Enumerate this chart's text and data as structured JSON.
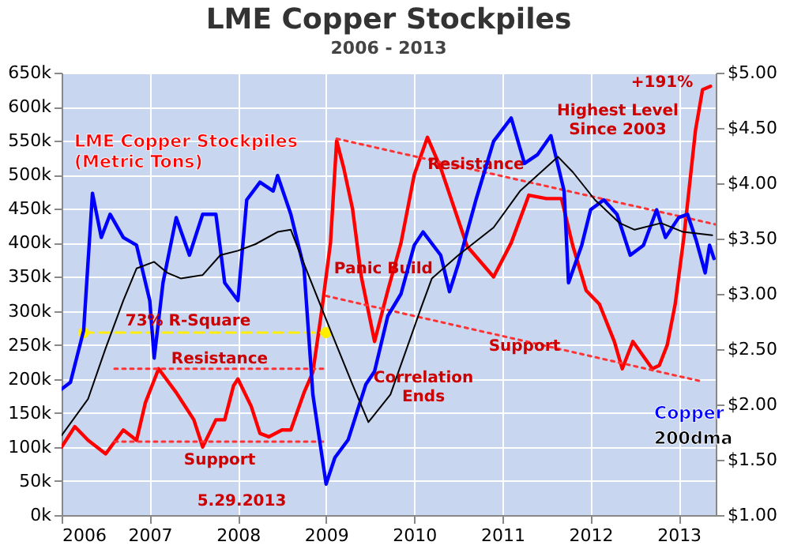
{
  "chart_data": {
    "type": "line",
    "title": "LME Copper Stockpiles",
    "subtitle": "2006 - 2013",
    "xlim": [
      2006,
      2013.42
    ],
    "xticks": [
      2006,
      2007,
      2008,
      2009,
      2010,
      2011,
      2012,
      2013
    ],
    "ylim": [
      0,
      650000
    ],
    "yticks": [
      {
        "value": 0,
        "label": "0k"
      },
      {
        "value": 50000,
        "label": "50k"
      },
      {
        "value": 100000,
        "label": "100k"
      },
      {
        "value": 150000,
        "label": "150k"
      },
      {
        "value": 200000,
        "label": "200k"
      },
      {
        "value": 250000,
        "label": "250k"
      },
      {
        "value": 300000,
        "label": "300k"
      },
      {
        "value": 350000,
        "label": "350k"
      },
      {
        "value": 400000,
        "label": "400k"
      },
      {
        "value": 450000,
        "label": "450k"
      },
      {
        "value": 500000,
        "label": "500k"
      },
      {
        "value": 550000,
        "label": "550k"
      },
      {
        "value": 600000,
        "label": "600k"
      },
      {
        "value": 650000,
        "label": "650k"
      }
    ],
    "y2lim": [
      1,
      5
    ],
    "y2ticks": [
      {
        "value": 1,
        "label": "$1.00"
      },
      {
        "value": 1.5,
        "label": "$1.50"
      },
      {
        "value": 2,
        "label": "$2.00"
      },
      {
        "value": 2.5,
        "label": "$2.50"
      },
      {
        "value": 3,
        "label": "$3.00"
      },
      {
        "value": 3.5,
        "label": "$3.50"
      },
      {
        "value": 4,
        "label": "$4.00"
      },
      {
        "value": 4.5,
        "label": "$4.50"
      },
      {
        "value": 5,
        "label": "$5.00"
      }
    ],
    "grid": true,
    "series": [
      {
        "name": "LME Copper Stockpiles (Metric Tons)",
        "color": "#ff0000",
        "x": [
          2006,
          2006.15,
          2006.3,
          2006.5,
          2006.7,
          2006.85,
          2006.95,
          2007.1,
          2007.3,
          2007.5,
          2007.6,
          2007.75,
          2007.85,
          2007.95,
          2008,
          2008.15,
          2008.25,
          2008.35,
          2008.5,
          2008.6,
          2008.75,
          2008.85,
          2008.95,
          2009.05,
          2009.12,
          2009.2,
          2009.3,
          2009.4,
          2009.55,
          2009.7,
          2009.85,
          2010,
          2010.15,
          2010.3,
          2010.6,
          2010.9,
          2011.1,
          2011.3,
          2011.5,
          2011.67,
          2011.8,
          2011.95,
          2012.1,
          2012.27,
          2012.36,
          2012.48,
          2012.7,
          2012.78,
          2012.87,
          2012.96,
          2013.06,
          2013.19,
          2013.27,
          2013.36
        ],
        "values": [
          100000,
          130000,
          110000,
          90000,
          125000,
          110000,
          165000,
          215000,
          180000,
          140000,
          100000,
          140000,
          140000,
          190000,
          200000,
          160000,
          120000,
          115000,
          125000,
          125000,
          180000,
          210000,
          300000,
          400000,
          550000,
          510000,
          450000,
          350000,
          255000,
          330000,
          400000,
          500000,
          555000,
          510000,
          395000,
          350000,
          400000,
          470000,
          465000,
          465000,
          395000,
          330000,
          310000,
          255000,
          215000,
          255000,
          215000,
          220000,
          250000,
          310000,
          410000,
          565000,
          625000,
          630000
        ]
      },
      {
        "color": "#ff3333",
        "line_style": "dotted",
        "x": [
          2006.6,
          2009.0
        ],
        "values": [
          215000,
          215000
        ]
      },
      {
        "color": "#ff3333",
        "line_style": "dotted",
        "x": [
          2006.6,
          2009.0
        ],
        "values": [
          108000,
          108000
        ]
      },
      {
        "color": "#ff3333",
        "line_style": "dotted",
        "x": [
          2009.12,
          2013.42
        ],
        "values": [
          553000,
          427000
        ]
      },
      {
        "color": "#ff3333",
        "line_style": "dotted",
        "x": [
          2009.0,
          2013.24
        ],
        "values": [
          322000,
          197000
        ]
      },
      {
        "color": "#ffee00",
        "line_style": "dashed",
        "marker": "circle",
        "x": [
          2006.25,
          2009.0
        ],
        "values": [
          268000,
          268000
        ]
      },
      {
        "name": "Copper",
        "color": "#0000ff",
        "axis": "y2",
        "x": [
          2006,
          2006.1,
          2006.25,
          2006.35,
          2006.45,
          2006.55,
          2006.7,
          2006.85,
          2007,
          2007.05,
          2007.15,
          2007.3,
          2007.45,
          2007.6,
          2007.75,
          2007.85,
          2008,
          2008.1,
          2008.25,
          2008.4,
          2008.45,
          2008.6,
          2008.75,
          2008.85,
          2009,
          2009.1,
          2009.25,
          2009.45,
          2009.55,
          2009.7,
          2009.85,
          2010,
          2010.1,
          2010.3,
          2010.4,
          2010.5,
          2010.7,
          2010.9,
          2011.1,
          2011.25,
          2011.4,
          2011.55,
          2011.7,
          2011.75,
          2011.9,
          2012,
          2012.15,
          2012.3,
          2012.45,
          2012.6,
          2012.75,
          2012.85,
          2013,
          2013.1,
          2013.2,
          2013.3,
          2013.35,
          2013.4
        ],
        "values": [
          2.14,
          2.2,
          2.67,
          3.91,
          3.51,
          3.72,
          3.51,
          3.44,
          2.94,
          2.42,
          3.1,
          3.69,
          3.35,
          3.72,
          3.72,
          3.1,
          2.94,
          3.85,
          4.01,
          3.93,
          4.07,
          3.72,
          3.23,
          2.09,
          1.28,
          1.52,
          1.68,
          2.18,
          2.3,
          2.8,
          3.0,
          3.44,
          3.56,
          3.35,
          3.02,
          3.27,
          3.85,
          4.38,
          4.59,
          4.18,
          4.26,
          4.43,
          3.93,
          3.1,
          3.44,
          3.76,
          3.85,
          3.72,
          3.35,
          3.44,
          3.76,
          3.51,
          3.69,
          3.72,
          3.48,
          3.19,
          3.44,
          3.32
        ]
      },
      {
        "name": "200dma",
        "color": "#000000",
        "axis": "y2",
        "x": [
          2006,
          2006.3,
          2006.5,
          2006.7,
          2006.85,
          2007.05,
          2007.2,
          2007.35,
          2007.6,
          2007.8,
          2008,
          2008.2,
          2008.45,
          2008.6,
          2008.75,
          2009.05,
          2009.3,
          2009.48,
          2009.73,
          2010.08,
          2010.2,
          2010.5,
          2010.9,
          2011.2,
          2011.63,
          2011.8,
          2012.05,
          2012.33,
          2012.5,
          2012.8,
          2013.05,
          2013.38
        ],
        "values": [
          1.72,
          2.05,
          2.51,
          2.94,
          3.23,
          3.29,
          3.19,
          3.14,
          3.17,
          3.35,
          3.39,
          3.45,
          3.56,
          3.58,
          3.27,
          2.67,
          2.18,
          1.84,
          2.09,
          2.88,
          3.14,
          3.35,
          3.6,
          3.93,
          4.24,
          4.1,
          3.85,
          3.64,
          3.58,
          3.64,
          3.56,
          3.53
        ]
      }
    ],
    "annotations": [
      {
        "text": "Panic Build",
        "x": 2009.65,
        "y": 362000
      },
      "73% R-Square",
      "Resistance",
      "Support",
      "Correlation Ends",
      {
        "text": "Resistance",
        "x": 2010.7,
        "y": 515000
      },
      {
        "text": "Support",
        "x": 2011.25,
        "y": 248000
      },
      "Highest Level Since 2003",
      "+191%",
      "5.29.2013"
    ]
  }
}
